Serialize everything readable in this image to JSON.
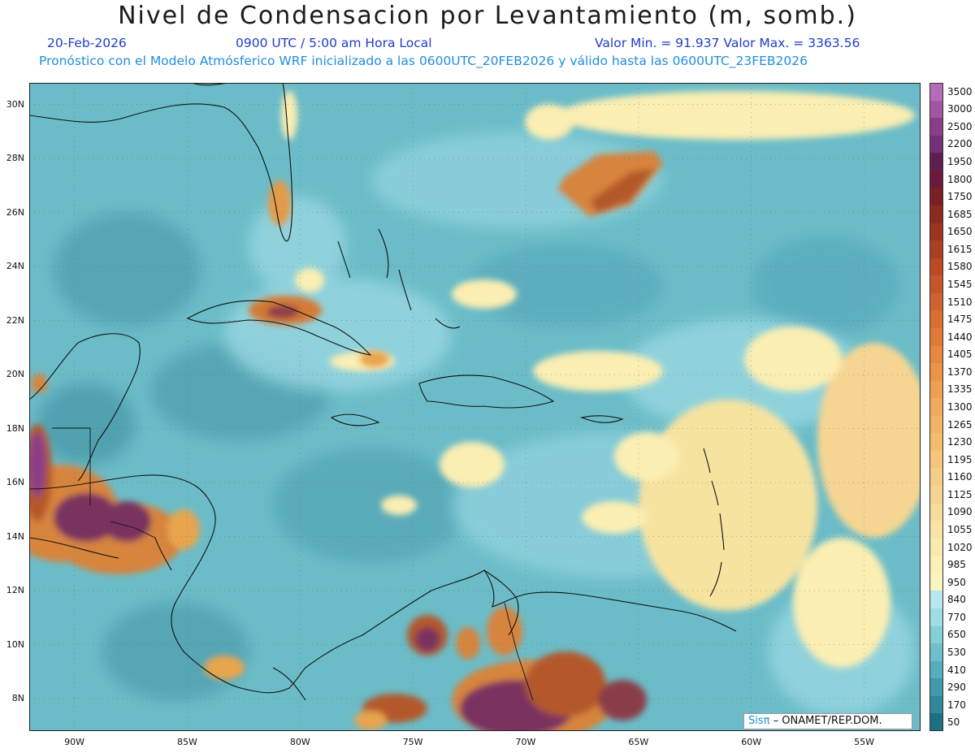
{
  "header": {
    "title": "Nivel de Condensacion por Levantamiento (m, somb.)",
    "date": "20-Feb-2026",
    "time": "0900 UTC / 5:00 am Hora Local",
    "minmax": "Valor Min. = 91.937  Valor Max. = 3363.56",
    "model_info": "Pronóstico con el Modelo Atmósferico WRF inicializado a las 0600UTC_20FEB2026 y válido hasta las  0600UTC_23FEB2026"
  },
  "map": {
    "lon_range": [
      -92.0,
      -52.5
    ],
    "lat_range": [
      6.8,
      30.8
    ],
    "lat_ticks": [
      "30N",
      "28N",
      "26N",
      "24N",
      "22N",
      "20N",
      "18N",
      "16N",
      "14N",
      "12N",
      "10N",
      "8N"
    ],
    "lon_ticks": [
      "90W",
      "85W",
      "80W",
      "75W",
      "70W",
      "65W",
      "60W",
      "55W"
    ],
    "background_color": "#6bbcc8"
  },
  "colorbar": {
    "levels": [
      "3500",
      "3000",
      "2500",
      "2200",
      "1950",
      "1800",
      "1750",
      "1685",
      "1650",
      "1615",
      "1580",
      "1545",
      "1510",
      "1475",
      "1440",
      "1405",
      "1370",
      "1335",
      "1300",
      "1265",
      "1230",
      "1195",
      "1160",
      "1125",
      "1090",
      "1055",
      "1020",
      "985",
      "950",
      "840",
      "770",
      "650",
      "530",
      "410",
      "290",
      "170",
      "50"
    ],
    "colors": [
      "#b46cb8",
      "#a0579f",
      "#8a3e88",
      "#753078",
      "#5e2052",
      "#6b1a3c",
      "#7a1f24",
      "#8b2a1e",
      "#9c3520",
      "#ab3f22",
      "#b94a24",
      "#c45628",
      "#cf6330",
      "#d86e32",
      "#e07a38",
      "#e6873e",
      "#eb9446",
      "#ee9f50",
      "#f0aa5c",
      "#f2b464",
      "#f3bd6e",
      "#f4c57a",
      "#f5cd86",
      "#f6d592",
      "#f7dd9c",
      "#f8e4a6",
      "#f9eaaf",
      "#faf0b8",
      "#fbf4bf",
      "#b9e8ee",
      "#9edde6",
      "#85cfd9",
      "#6cbfcb",
      "#55aebd",
      "#3f9aac",
      "#2e879a",
      "#1d6f82"
    ]
  },
  "credit": {
    "brand": "Sisπ",
    "text": "– ONAMET/REP.DOM."
  },
  "legend_icons": [
    "map-grid",
    "coastline"
  ]
}
